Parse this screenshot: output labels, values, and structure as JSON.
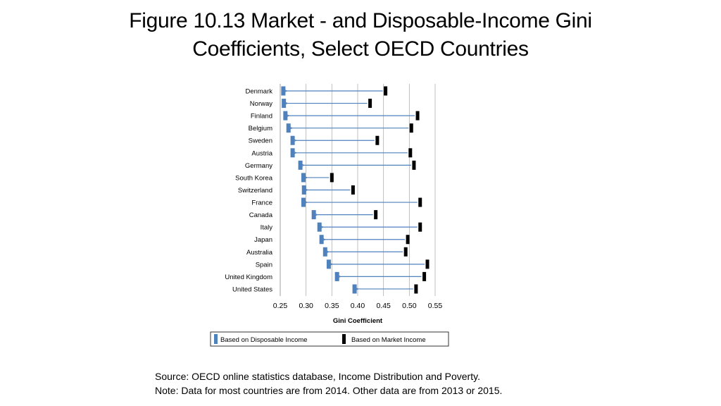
{
  "slide": {
    "title_line1": "Figure 10.13 Market - and Disposable-Income Gini",
    "title_line2": "Coefficients, Select OECD Countries",
    "source": "Source: OECD online statistics database, Income Distribution and Poverty.",
    "note": "Note: Data for most countries are from 2014. Other data are from 2013 or 2015."
  },
  "colors": {
    "disposable": "#4f81bd",
    "market": "#000000",
    "arrow": "#4f81bd",
    "grid": "#b0b0b0"
  },
  "chart_data": {
    "type": "dumbbell",
    "xlabel": "Gini Coefficient",
    "xlim": [
      0.25,
      0.55
    ],
    "xticks": [
      "0.25",
      "0.30",
      "0.35",
      "0.40",
      "0.45",
      "0.50",
      "0.55"
    ],
    "grid": "vertical",
    "legend_position": "bottom",
    "categories": [
      "Denmark",
      "Norway",
      "Finland",
      "Belgium",
      "Sweden",
      "Austria",
      "Germany",
      "South Korea",
      "Switzerland",
      "France",
      "Canada",
      "Italy",
      "Japan",
      "Australia",
      "Spain",
      "United Kingdom",
      "United States"
    ],
    "series": [
      {
        "name": "Based on Disposable Income",
        "values": [
          0.256,
          0.257,
          0.26,
          0.266,
          0.274,
          0.274,
          0.289,
          0.295,
          0.296,
          0.295,
          0.315,
          0.326,
          0.33,
          0.337,
          0.344,
          0.36,
          0.394
        ]
      },
      {
        "name": "Based on Market Income",
        "values": [
          0.454,
          0.424,
          0.516,
          0.504,
          0.438,
          0.502,
          0.509,
          0.35,
          0.391,
          0.521,
          0.435,
          0.521,
          0.497,
          0.493,
          0.535,
          0.529,
          0.513
        ]
      }
    ]
  }
}
